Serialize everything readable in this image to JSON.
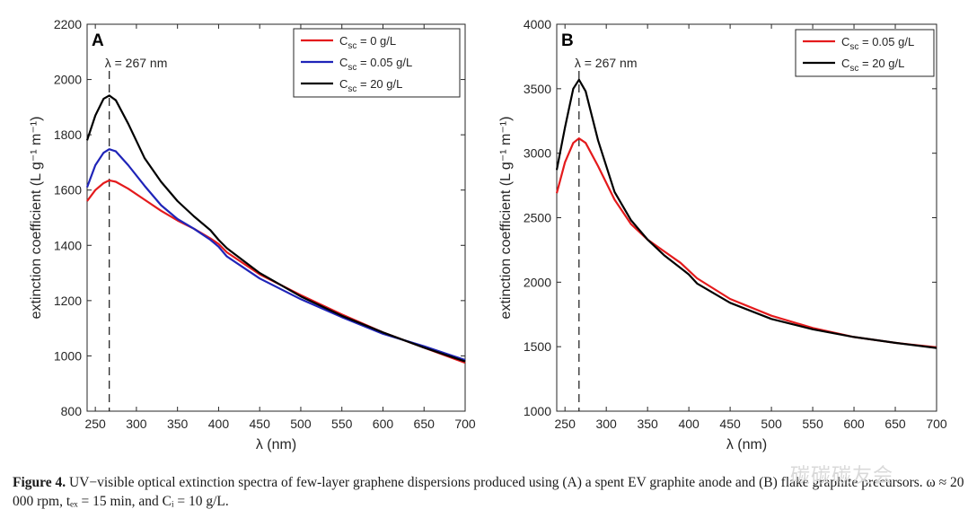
{
  "chart_data": [
    {
      "type": "line",
      "panel_label": "A",
      "xlabel": "λ (nm)",
      "ylabel": "extinction coefficient (L g⁻¹ m⁻¹)",
      "xlim": [
        240,
        700
      ],
      "ylim": [
        800,
        2200
      ],
      "xticks": [
        250,
        300,
        350,
        400,
        450,
        500,
        550,
        600,
        650,
        700
      ],
      "yticks": [
        800,
        1000,
        1200,
        1400,
        1600,
        1800,
        2000,
        2200
      ],
      "legend_position": "top-right",
      "annotation": {
        "text": "λ = 267 nm",
        "x": 267
      },
      "series": [
        {
          "name": "C_sc = 0 g/L",
          "legend_main": "C",
          "legend_sub": "sc",
          "legend_rest": " = 0 g/L",
          "color": "#e41a1c",
          "x": [
            240,
            250,
            260,
            267,
            275,
            290,
            310,
            330,
            350,
            370,
            390,
            400,
            410,
            450,
            500,
            550,
            600,
            650,
            700
          ],
          "y": [
            1560,
            1600,
            1625,
            1635,
            1630,
            1605,
            1565,
            1525,
            1490,
            1460,
            1425,
            1405,
            1375,
            1295,
            1220,
            1150,
            1085,
            1030,
            975
          ]
        },
        {
          "name": "C_sc = 0.05 g/L",
          "legend_main": "C",
          "legend_sub": "sc",
          "legend_rest": " = 0.05 g/L",
          "color": "#1f24b8",
          "x": [
            240,
            250,
            260,
            267,
            275,
            290,
            310,
            330,
            350,
            370,
            390,
            400,
            410,
            450,
            500,
            550,
            600,
            650,
            700
          ],
          "y": [
            1610,
            1690,
            1735,
            1748,
            1740,
            1690,
            1615,
            1545,
            1495,
            1460,
            1420,
            1395,
            1360,
            1280,
            1205,
            1140,
            1080,
            1035,
            985
          ]
        },
        {
          "name": "C_sc = 20 g/L",
          "legend_main": "C",
          "legend_sub": "sc",
          "legend_rest": " = 20 g/L",
          "color": "#000000",
          "x": [
            240,
            250,
            260,
            267,
            275,
            290,
            310,
            330,
            350,
            370,
            390,
            400,
            410,
            450,
            500,
            550,
            600,
            650,
            700
          ],
          "y": [
            1780,
            1870,
            1930,
            1942,
            1925,
            1840,
            1715,
            1630,
            1560,
            1505,
            1455,
            1420,
            1390,
            1300,
            1215,
            1145,
            1085,
            1030,
            980
          ]
        }
      ]
    },
    {
      "type": "line",
      "panel_label": "B",
      "xlabel": "λ (nm)",
      "ylabel": "extinction coefficient (L g⁻¹ m⁻¹)",
      "xlim": [
        240,
        700
      ],
      "ylim": [
        1000,
        4000
      ],
      "xticks": [
        250,
        300,
        350,
        400,
        450,
        500,
        550,
        600,
        650,
        700
      ],
      "yticks": [
        1000,
        1500,
        2000,
        2500,
        3000,
        3500,
        4000
      ],
      "legend_position": "top-right",
      "annotation": {
        "text": "λ = 267 nm",
        "x": 267
      },
      "series": [
        {
          "name": "C_sc = 0.05 g/L",
          "legend_main": "C",
          "legend_sub": "sc",
          "legend_rest": " = 0.05 g/L",
          "color": "#e41a1c",
          "x": [
            240,
            250,
            260,
            267,
            275,
            290,
            310,
            330,
            350,
            370,
            390,
            400,
            410,
            450,
            500,
            550,
            600,
            650,
            700
          ],
          "y": [
            2690,
            2930,
            3080,
            3115,
            3080,
            2900,
            2640,
            2450,
            2330,
            2240,
            2150,
            2090,
            2030,
            1870,
            1740,
            1645,
            1575,
            1530,
            1495
          ]
        },
        {
          "name": "C_sc = 20 g/L",
          "legend_main": "C",
          "legend_sub": "sc",
          "legend_rest": " = 20 g/L",
          "color": "#000000",
          "x": [
            240,
            250,
            260,
            267,
            275,
            290,
            310,
            330,
            350,
            370,
            390,
            400,
            410,
            450,
            500,
            550,
            600,
            650,
            700
          ],
          "y": [
            2870,
            3200,
            3500,
            3570,
            3480,
            3100,
            2700,
            2480,
            2330,
            2210,
            2110,
            2060,
            1990,
            1840,
            1715,
            1635,
            1575,
            1530,
            1490
          ]
        }
      ]
    }
  ],
  "caption": {
    "label": "Figure 4.",
    "text": "UV−visible optical extinction spectra of few-layer graphene dispersions produced using (A) a spent EV graphite anode and (B) flake graphite precursors. ω ≈ 20 000 rpm, tₑₓ = 15 min, and Cᵢ = 10 g/L."
  },
  "watermark": "碳碳碳友会"
}
